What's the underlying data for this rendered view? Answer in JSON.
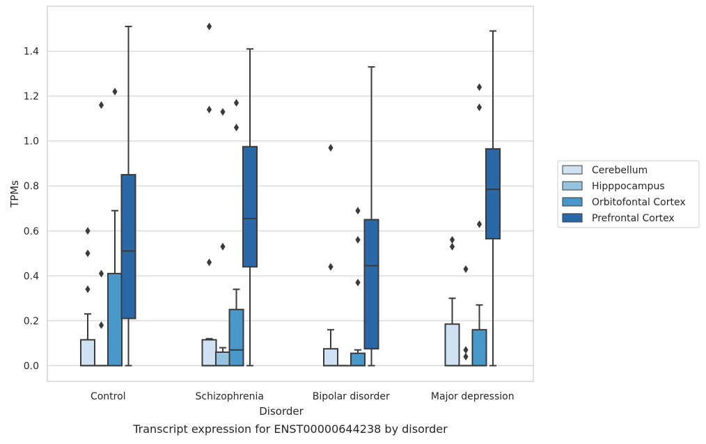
{
  "chart_data": {
    "type": "boxplot",
    "caption": "Transcript expression for ENST00000644238 by disorder",
    "xlabel": "Disorder",
    "ylabel": "TPMs",
    "ylim": [
      -0.07,
      1.6
    ],
    "yticks": [
      0.0,
      0.2,
      0.4,
      0.6,
      0.8,
      1.0,
      1.2,
      1.4
    ],
    "ytick_labels": [
      "0.0",
      "0.2",
      "0.4",
      "0.6",
      "0.8",
      "1.0",
      "1.2",
      "1.4"
    ],
    "grid": "horizontal",
    "legend_position": "right",
    "categories": [
      "Control",
      "Schizophrenia",
      "Bipolar disorder",
      "Major depression"
    ],
    "series": [
      {
        "name": "Cerebellum",
        "color": "#d0e1f2",
        "boxes": [
          {
            "category": "Control",
            "q1": 0.0,
            "median": 0.0,
            "q3": 0.115,
            "whisker_low": 0.0,
            "whisker_high": 0.23,
            "outliers": [
              0.34,
              0.5,
              0.6
            ]
          },
          {
            "category": "Schizophrenia",
            "q1": 0.0,
            "median": 0.0,
            "q3": 0.115,
            "whisker_low": 0.0,
            "whisker_high": 0.12,
            "outliers": [
              0.46,
              1.14,
              1.51
            ]
          },
          {
            "category": "Bipolar disorder",
            "q1": 0.0,
            "median": 0.0,
            "q3": 0.075,
            "whisker_low": 0.0,
            "whisker_high": 0.16,
            "outliers": [
              0.44,
              0.97
            ]
          },
          {
            "category": "Major depression",
            "q1": 0.0,
            "median": 0.0,
            "q3": 0.185,
            "whisker_low": 0.0,
            "whisker_high": 0.3,
            "outliers": [
              0.53,
              0.56
            ]
          }
        ]
      },
      {
        "name": "Hipppocampus",
        "color": "#94c4df",
        "boxes": [
          {
            "category": "Control",
            "q1": 0.0,
            "median": 0.0,
            "q3": 0.0,
            "whisker_low": 0.0,
            "whisker_high": 0.0,
            "outliers": [
              0.18,
              0.41,
              1.16
            ]
          },
          {
            "category": "Schizophrenia",
            "q1": 0.0,
            "median": 0.0,
            "q3": 0.06,
            "whisker_low": 0.0,
            "whisker_high": 0.08,
            "outliers": [
              0.53,
              1.13
            ]
          },
          {
            "category": "Bipolar disorder",
            "q1": 0.0,
            "median": 0.0,
            "q3": 0.0,
            "whisker_low": 0.0,
            "whisker_high": 0.0,
            "outliers": []
          },
          {
            "category": "Major depression",
            "q1": 0.0,
            "median": 0.0,
            "q3": 0.0,
            "whisker_low": 0.0,
            "whisker_high": 0.0,
            "outliers": [
              0.04,
              0.07,
              0.43
            ]
          }
        ]
      },
      {
        "name": "Orbitofontal Cortex",
        "color": "#4a98c9",
        "boxes": [
          {
            "category": "Control",
            "q1": 0.0,
            "median": 0.0,
            "q3": 0.41,
            "whisker_low": 0.0,
            "whisker_high": 0.69,
            "outliers": [
              1.22
            ]
          },
          {
            "category": "Schizophrenia",
            "q1": 0.0,
            "median": 0.07,
            "q3": 0.25,
            "whisker_low": 0.0,
            "whisker_high": 0.34,
            "outliers": [
              1.06,
              1.17
            ]
          },
          {
            "category": "Bipolar disorder",
            "q1": 0.0,
            "median": 0.0,
            "q3": 0.055,
            "whisker_low": 0.0,
            "whisker_high": 0.07,
            "outliers": [
              0.37,
              0.56,
              0.69
            ]
          },
          {
            "category": "Major depression",
            "q1": 0.0,
            "median": 0.0,
            "q3": 0.16,
            "whisker_low": 0.0,
            "whisker_high": 0.27,
            "outliers": [
              0.63,
              1.15,
              1.24
            ]
          }
        ]
      },
      {
        "name": "Prefrontal Cortex",
        "color": "#2a68a8",
        "boxes": [
          {
            "category": "Control",
            "q1": 0.21,
            "median": 0.51,
            "q3": 0.85,
            "whisker_low": 0.0,
            "whisker_high": 1.51,
            "outliers": []
          },
          {
            "category": "Schizophrenia",
            "q1": 0.44,
            "median": 0.655,
            "q3": 0.975,
            "whisker_low": 0.0,
            "whisker_high": 1.41,
            "outliers": []
          },
          {
            "category": "Bipolar disorder",
            "q1": 0.075,
            "median": 0.445,
            "q3": 0.65,
            "whisker_low": 0.0,
            "whisker_high": 1.33,
            "outliers": []
          },
          {
            "category": "Major depression",
            "q1": 0.565,
            "median": 0.785,
            "q3": 0.965,
            "whisker_low": 0.0,
            "whisker_high": 1.49,
            "outliers": []
          }
        ]
      }
    ]
  }
}
